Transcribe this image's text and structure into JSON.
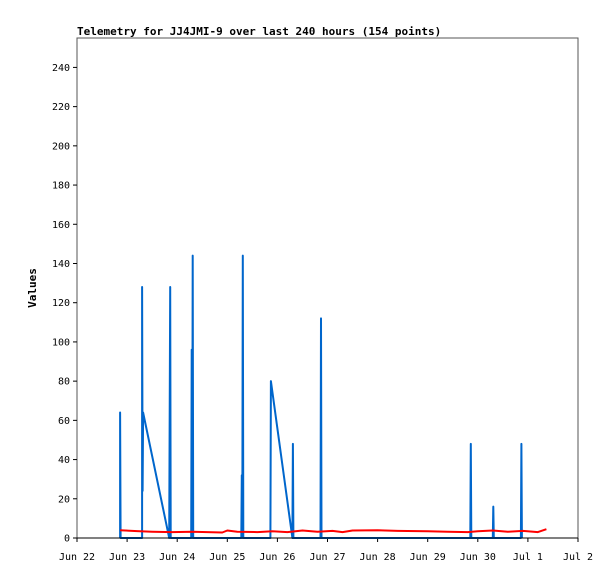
{
  "chart_data": {
    "type": "line",
    "title": "Telemetry for JJ4JMI-9 over last 240 hours (154 points)",
    "xlabel": "",
    "ylabel": "Values",
    "ylim": [
      0,
      255
    ],
    "yticks": [
      0,
      20,
      40,
      60,
      80,
      100,
      120,
      140,
      160,
      180,
      200,
      220,
      240
    ],
    "xticks": [
      "Jun 22",
      "Jun 23",
      "Jun 24",
      "Jun 25",
      "Jun 26",
      "Jun 27",
      "Jun 28",
      "Jun 29",
      "Jun 30",
      "Jul 1",
      "Jul 2"
    ],
    "xlim_days": [
      0,
      10
    ],
    "grid": false,
    "legend": "none",
    "series": [
      {
        "color": "#0066cc",
        "points": [
          [
            0.86,
            0
          ],
          [
            0.86,
            64
          ],
          [
            0.87,
            0
          ],
          [
            1.3,
            0
          ],
          [
            1.3,
            128
          ],
          [
            1.31,
            24
          ],
          [
            1.32,
            64
          ],
          [
            1.84,
            0
          ],
          [
            1.86,
            128
          ],
          [
            1.87,
            0
          ],
          [
            2.28,
            0
          ],
          [
            2.29,
            96
          ],
          [
            2.3,
            0
          ],
          [
            2.31,
            144
          ],
          [
            2.32,
            0
          ],
          [
            3.28,
            0
          ],
          [
            3.29,
            32
          ],
          [
            3.3,
            0
          ],
          [
            3.31,
            144
          ],
          [
            3.32,
            0
          ],
          [
            3.86,
            0
          ],
          [
            3.87,
            80
          ],
          [
            4.3,
            0
          ],
          [
            4.31,
            48
          ],
          [
            4.32,
            0
          ],
          [
            4.86,
            0
          ],
          [
            4.87,
            112
          ],
          [
            4.88,
            0
          ],
          [
            7.85,
            0
          ],
          [
            7.86,
            48
          ],
          [
            7.87,
            0
          ],
          [
            8.3,
            0
          ],
          [
            8.31,
            16
          ],
          [
            8.32,
            0
          ],
          [
            8.86,
            0
          ],
          [
            8.87,
            48
          ],
          [
            8.88,
            0
          ]
        ]
      },
      {
        "color": "#ff0000",
        "points": [
          [
            0.86,
            4
          ],
          [
            1.2,
            3.5
          ],
          [
            1.5,
            3.2
          ],
          [
            1.9,
            3.0
          ],
          [
            2.3,
            3.2
          ],
          [
            2.6,
            3.0
          ],
          [
            2.9,
            2.8
          ],
          [
            3.0,
            3.8
          ],
          [
            3.2,
            3.2
          ],
          [
            3.6,
            3.0
          ],
          [
            3.9,
            3.4
          ],
          [
            4.2,
            3.0
          ],
          [
            4.5,
            3.8
          ],
          [
            4.8,
            3.2
          ],
          [
            5.1,
            3.6
          ],
          [
            5.3,
            3.0
          ],
          [
            5.5,
            3.8
          ],
          [
            6.0,
            4.0
          ],
          [
            6.4,
            3.6
          ],
          [
            7.0,
            3.4
          ],
          [
            7.4,
            3.2
          ],
          [
            7.8,
            3.0
          ],
          [
            8.0,
            3.4
          ],
          [
            8.3,
            3.8
          ],
          [
            8.6,
            3.2
          ],
          [
            8.9,
            3.6
          ],
          [
            9.2,
            3.0
          ],
          [
            9.37,
            4.5
          ]
        ]
      }
    ]
  }
}
